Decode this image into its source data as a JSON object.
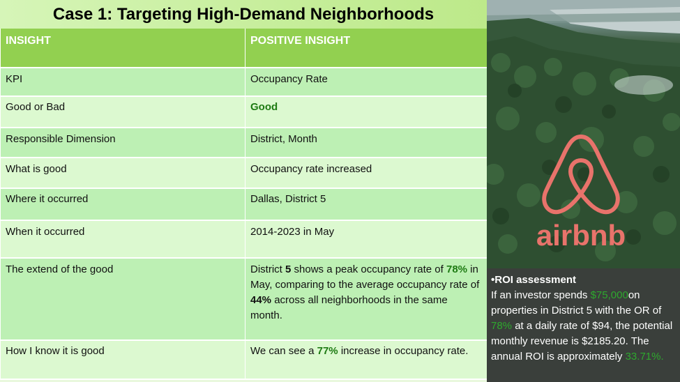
{
  "title": "Case 1: Targeting High-Demand Neighborhoods",
  "table": {
    "headers": [
      "INSIGHT",
      "POSITIVE INSIGHT"
    ],
    "rows": [
      {
        "label": "KPI",
        "value": "Occupancy Rate"
      },
      {
        "label": "Good or Bad",
        "value": "Good"
      },
      {
        "label": "Responsible Dimension",
        "value": "District, Month"
      },
      {
        "label": "What is good",
        "value": "Occupancy rate increased"
      },
      {
        "label": "Where it occurred",
        "value": "Dallas, District 5"
      },
      {
        "label": "When it occurred",
        "value": "2014-2023 in May"
      },
      {
        "label": "The extend of the good",
        "value_parts": [
          "District ",
          "5",
          " shows a peak occupancy rate of ",
          "78%",
          " in May, comparing to the average occupancy rate of ",
          "44%",
          " across all neighborhoods in the same month."
        ]
      },
      {
        "label": "How I know it is good",
        "value_parts": [
          "We can see a ",
          "77%",
          " increase in occupancy rate."
        ]
      }
    ]
  },
  "logo": {
    "text": "airbnb",
    "color": "#e8736b"
  },
  "roi": {
    "title": "•ROI assessment",
    "parts": [
      "If an investor spends ",
      "$75,000",
      "on properties in District 5 with the OR of ",
      "78%",
      " at a daily rate of $94, the potential monthly revenue is $2185.20. The annual ROI is approximately ",
      "33.71%."
    ]
  },
  "colors": {
    "header": "#92d050",
    "row_dark": "#bdf0b4",
    "row_light": "#dcf9d0",
    "highlight": "#1e7b13",
    "roi_green": "#2ea82e"
  }
}
